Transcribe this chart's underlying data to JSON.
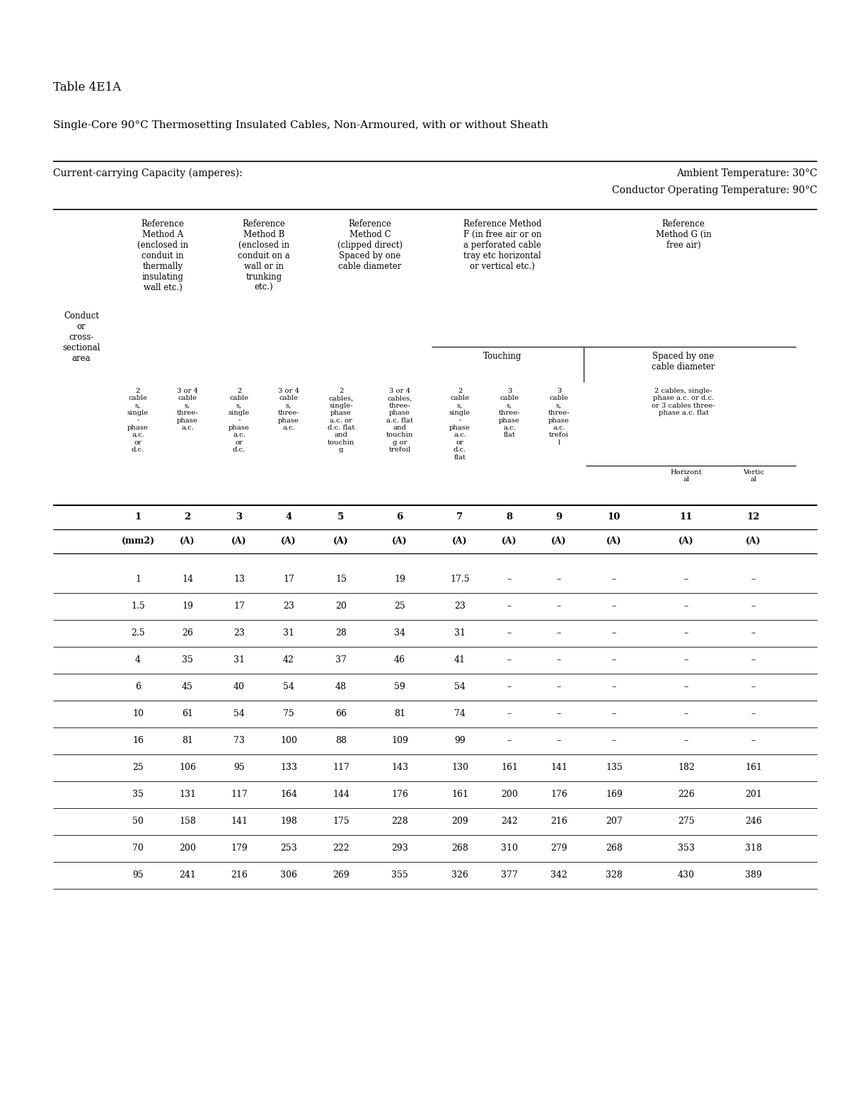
{
  "title": "Table 4E1A",
  "subtitle": "Single-Core 90°C Thermosetting Insulated Cables, Non-Armoured, with or without Sheath",
  "ambient_temp": "Ambient Temperature: 30°C",
  "conductor_temp": "Conductor Operating Temperature: 90°C",
  "current_carrying": "Current-carrying Capacity (amperes):",
  "col_numbers": [
    "1",
    "2",
    "3",
    "4",
    "5",
    "6",
    "7",
    "8",
    "9",
    "10",
    "11",
    "12"
  ],
  "col_units": [
    "(mm2)",
    "(A)",
    "(A)",
    "(A)",
    "(A)",
    "(A)",
    "(A)",
    "(A)",
    "(A)",
    "(A)",
    "(A)",
    "(A)"
  ],
  "data_rows": [
    [
      "1",
      "14",
      "13",
      "17",
      "15",
      "19",
      "17.5",
      "–",
      "–",
      "–",
      "–",
      "–"
    ],
    [
      "1.5",
      "19",
      "17",
      "23",
      "20",
      "25",
      "23",
      "–",
      "–",
      "–",
      "–",
      "–"
    ],
    [
      "2.5",
      "26",
      "23",
      "31",
      "28",
      "34",
      "31",
      "–",
      "–",
      "–",
      "–",
      "–"
    ],
    [
      "4",
      "35",
      "31",
      "42",
      "37",
      "46",
      "41",
      "–",
      "–",
      "–",
      "–",
      "–"
    ],
    [
      "6",
      "45",
      "40",
      "54",
      "48",
      "59",
      "54",
      "–",
      "–",
      "–",
      "–",
      "–"
    ],
    [
      "10",
      "61",
      "54",
      "75",
      "66",
      "81",
      "74",
      "–",
      "–",
      "–",
      "–",
      "–"
    ],
    [
      "16",
      "81",
      "73",
      "100",
      "88",
      "109",
      "99",
      "–",
      "–",
      "–",
      "–",
      "–"
    ],
    [
      "25",
      "106",
      "95",
      "133",
      "117",
      "143",
      "130",
      "161",
      "141",
      "135",
      "182",
      "161"
    ],
    [
      "35",
      "131",
      "117",
      "164",
      "144",
      "176",
      "161",
      "200",
      "176",
      "169",
      "226",
      "201"
    ],
    [
      "50",
      "158",
      "141",
      "198",
      "175",
      "228",
      "209",
      "242",
      "216",
      "207",
      "275",
      "246"
    ],
    [
      "70",
      "200",
      "179",
      "253",
      "222",
      "293",
      "268",
      "310",
      "279",
      "268",
      "353",
      "318"
    ],
    [
      "95",
      "241",
      "216",
      "306",
      "269",
      "355",
      "326",
      "377",
      "342",
      "328",
      "430",
      "389"
    ]
  ],
  "bg_color": "#ffffff",
  "text_color": "#000000",
  "font_family": "DejaVu Serif"
}
